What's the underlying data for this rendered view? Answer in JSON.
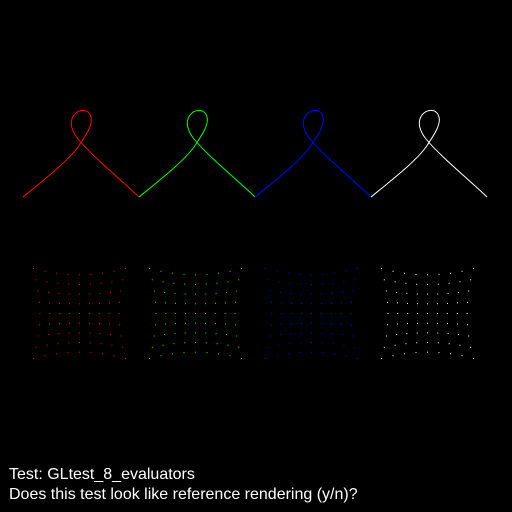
{
  "test": {
    "title": "Test: GLtest_8_evaluators",
    "prompt": "Does this test look like reference rendering (y/n)?"
  },
  "colors": {
    "background": "#000000",
    "text": "#ffffff",
    "series": [
      "#ff0000",
      "#00ff00",
      "#0000ff",
      "#ffffff"
    ]
  },
  "scene": {
    "curves": {
      "count": 4,
      "shape": "bezier-loop"
    },
    "point_grids": {
      "count": 4,
      "rows": 9,
      "cols": 9,
      "shape": "pinched-grid"
    }
  }
}
